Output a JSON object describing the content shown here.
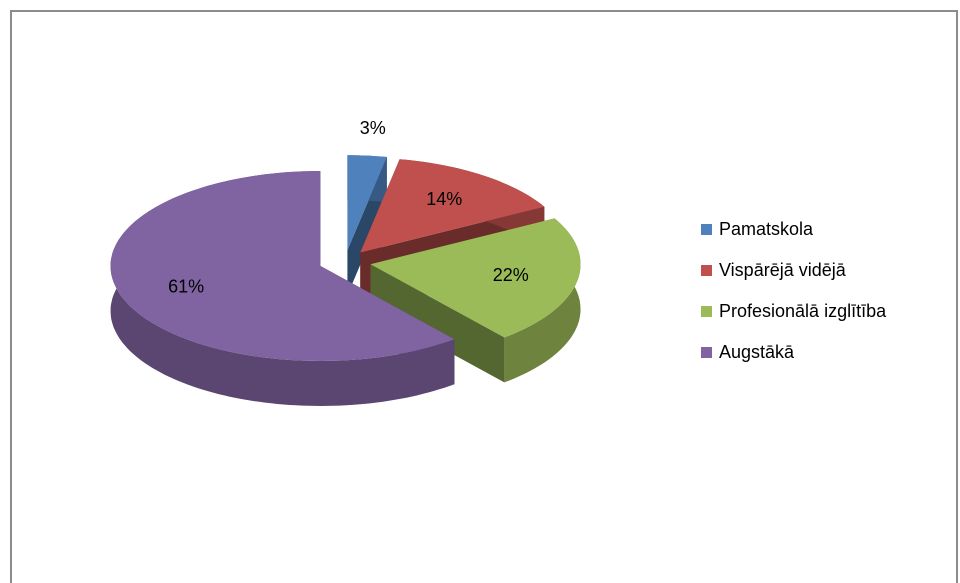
{
  "chart_data": {
    "type": "pie",
    "categories": [
      "Pamatskola",
      "Vispārējā vidējā",
      "Profesionālā izglītība",
      "Augstākā"
    ],
    "values": [
      3,
      14,
      22,
      61
    ],
    "value_labels": [
      "3%",
      "14%",
      "22%",
      "61%"
    ],
    "colors": [
      "#4f81bd",
      "#c0504d",
      "#9bbb59",
      "#8064a2"
    ]
  }
}
